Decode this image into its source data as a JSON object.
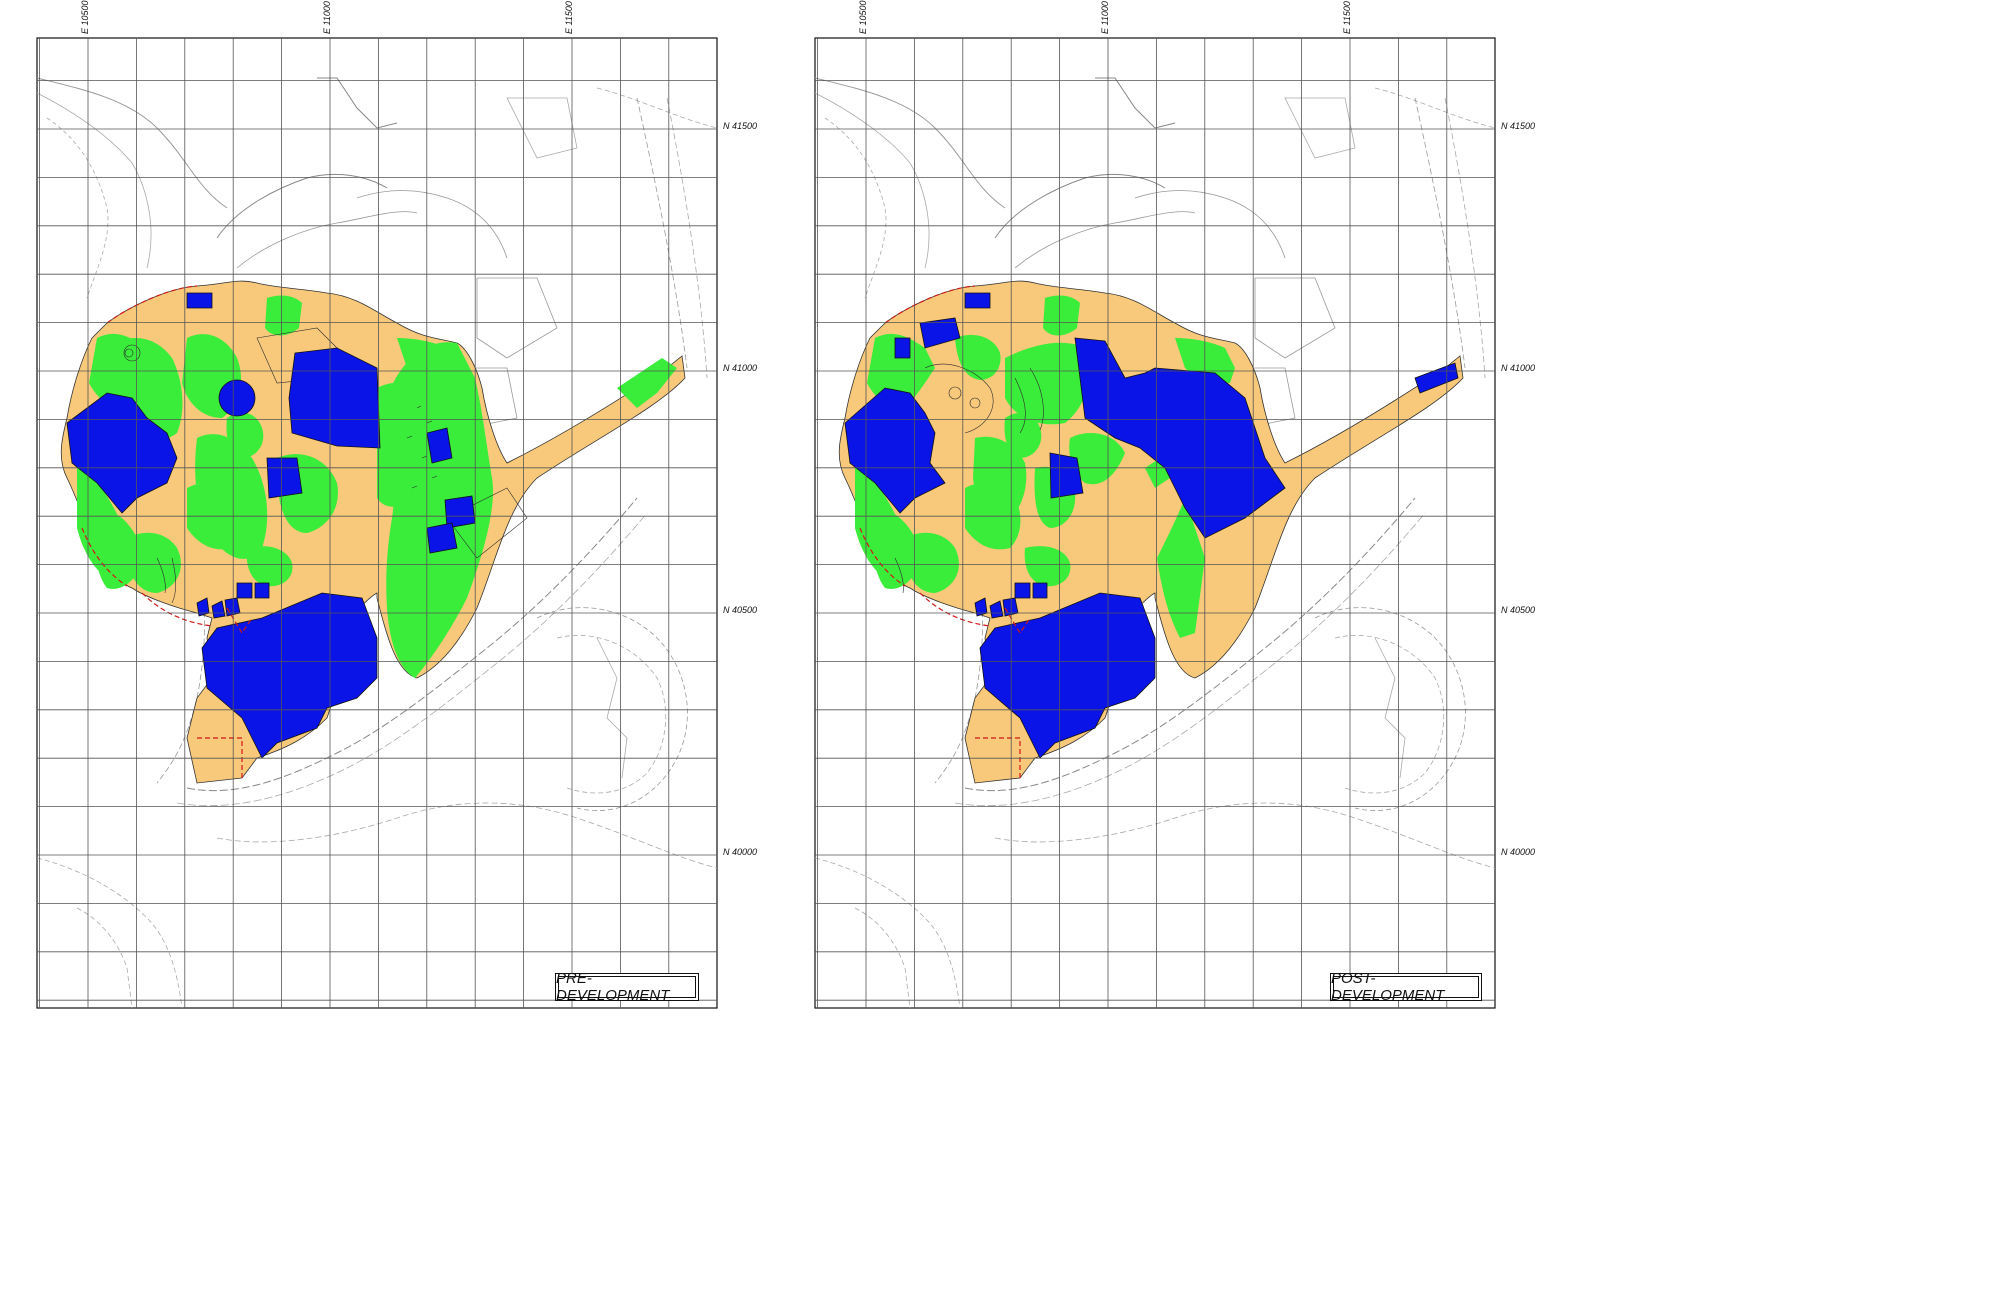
{
  "panels": [
    {
      "title": "PRE-DEVELOPMENT",
      "easting_labels": [
        "E 10500",
        "E 11000",
        "E 11500"
      ],
      "northing_labels": [
        "N 41500",
        "N 41000",
        "N 40500",
        "N 40000"
      ]
    },
    {
      "title": "POST-DEVELOPMENT",
      "easting_labels": [
        "E 10500",
        "E 11000",
        "E 11500"
      ],
      "northing_labels": [
        "N 41500",
        "N 41000",
        "N 40500",
        "N 40000"
      ]
    }
  ],
  "colors": {
    "paved": "#f8c97b",
    "landscape": "#3aed3a",
    "building": "#0a14e6",
    "boundary": "#d01818",
    "grid": "#555555",
    "linework": "#8a8a8a"
  }
}
